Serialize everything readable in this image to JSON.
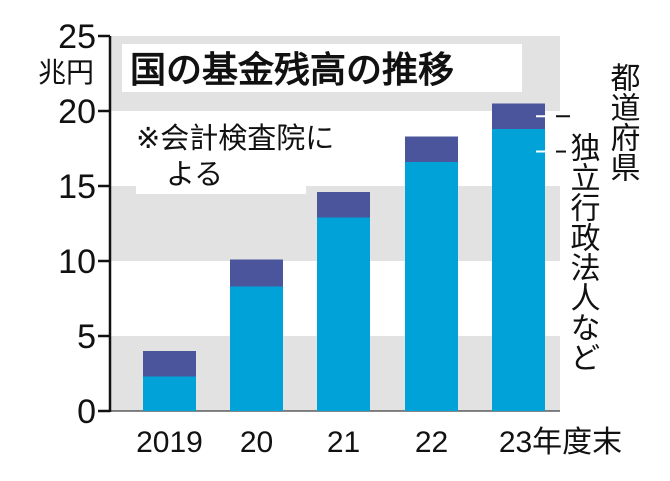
{
  "chart_data": {
    "type": "bar",
    "stacked": true,
    "title": "国の基金残高の推移",
    "unit": "兆円",
    "note_line1": "※会計検査院に",
    "note_line2": "よる",
    "categories": [
      "2019",
      "20",
      "21",
      "22",
      "23年度末"
    ],
    "series": [
      {
        "name": "独立行政法人など",
        "color": "#00a2d8",
        "values": [
          2.3,
          8.3,
          12.9,
          16.6,
          18.8
        ]
      },
      {
        "name": "都道府県",
        "color": "#4b559b",
        "values": [
          1.7,
          1.8,
          1.7,
          1.7,
          1.7
        ]
      }
    ],
    "ylim": [
      0,
      25
    ],
    "yticks": [
      0,
      5,
      10,
      15,
      20,
      25
    ],
    "grid": "alternating horizontal bands",
    "legend": "right, vertical labels"
  }
}
